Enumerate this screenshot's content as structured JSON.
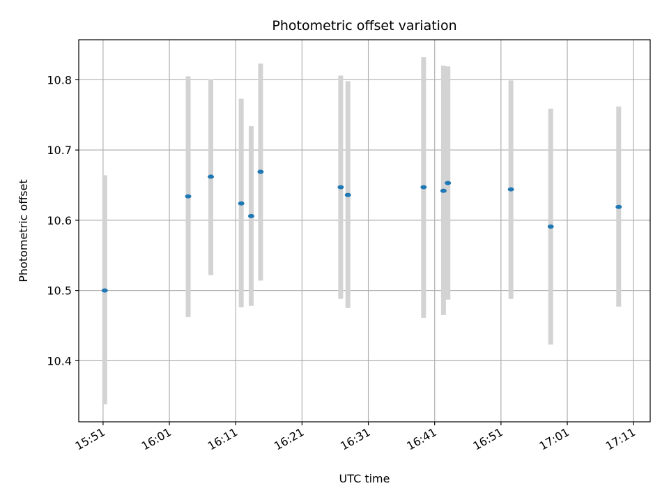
{
  "chart_data": {
    "type": "scatter",
    "title": "Photometric offset variation",
    "xlabel": "UTC time",
    "ylabel": "Photometric offset",
    "x_ticks": [
      "15:51",
      "16:01",
      "16:11",
      "16:21",
      "16:31",
      "16:41",
      "16:51",
      "17:01",
      "17:11"
    ],
    "y_ticks": [
      "10.4",
      "10.5",
      "10.6",
      "10.7",
      "10.8"
    ],
    "xlim": [
      "15:47:20",
      "17:13:30"
    ],
    "ylim": [
      10.313,
      10.857
    ],
    "grid": true,
    "errorbar_color": "#d3d3d3",
    "point_color": "#1f77b4",
    "points": [
      {
        "x": "15:51:15",
        "y": 10.5,
        "low": 10.338,
        "high": 10.664
      },
      {
        "x": "16:03:50",
        "y": 10.634,
        "low": 10.462,
        "high": 10.805
      },
      {
        "x": "16:07:15",
        "y": 10.662,
        "low": 10.522,
        "high": 10.8
      },
      {
        "x": "16:11:50",
        "y": 10.624,
        "low": 10.476,
        "high": 10.773
      },
      {
        "x": "16:13:20",
        "y": 10.606,
        "low": 10.478,
        "high": 10.734
      },
      {
        "x": "16:14:45",
        "y": 10.669,
        "low": 10.514,
        "high": 10.823
      },
      {
        "x": "16:26:50",
        "y": 10.647,
        "low": 10.488,
        "high": 10.806
      },
      {
        "x": "16:27:55",
        "y": 10.636,
        "low": 10.475,
        "high": 10.798
      },
      {
        "x": "16:39:20",
        "y": 10.647,
        "low": 10.461,
        "high": 10.832
      },
      {
        "x": "16:42:20",
        "y": 10.642,
        "low": 10.465,
        "high": 10.82
      },
      {
        "x": "16:43:00",
        "y": 10.653,
        "low": 10.487,
        "high": 10.819
      },
      {
        "x": "16:52:30",
        "y": 10.644,
        "low": 10.488,
        "high": 10.799
      },
      {
        "x": "16:58:30",
        "y": 10.591,
        "low": 10.423,
        "high": 10.759
      },
      {
        "x": "17:08:45",
        "y": 10.619,
        "low": 10.477,
        "high": 10.762
      }
    ]
  }
}
